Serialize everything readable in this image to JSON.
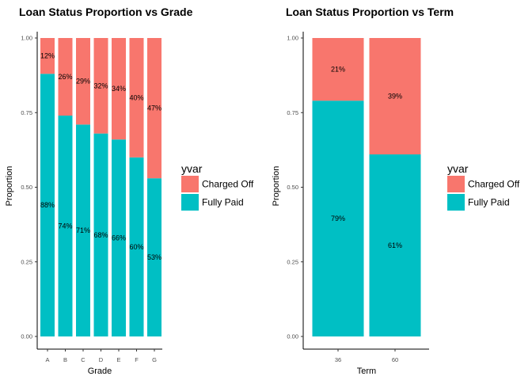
{
  "chart_data": [
    {
      "type": "bar",
      "stacked": true,
      "title": "Loan Status Proportion vs Grade",
      "xlabel": "Grade",
      "ylabel": "Proportion",
      "ylim": [
        0,
        1
      ],
      "yticks": [
        "0.00",
        "0.25",
        "0.50",
        "0.75",
        "1.00"
      ],
      "categories": [
        "A",
        "B",
        "C",
        "D",
        "E",
        "F",
        "G"
      ],
      "series": [
        {
          "name": "Fully Paid",
          "color": "#00BFC4",
          "values": [
            0.88,
            0.74,
            0.71,
            0.68,
            0.66,
            0.6,
            0.53
          ],
          "labels": [
            "88%",
            "74%",
            "71%",
            "68%",
            "66%",
            "60%",
            "53%"
          ]
        },
        {
          "name": "Charged Off",
          "color": "#F8766D",
          "values": [
            0.12,
            0.26,
            0.29,
            0.32,
            0.34,
            0.4,
            0.47
          ],
          "labels": [
            "12%",
            "26%",
            "29%",
            "32%",
            "34%",
            "40%",
            "47%"
          ]
        }
      ],
      "legend": {
        "title": "yvar",
        "position": "right",
        "entries": [
          "Charged Off",
          "Fully Paid"
        ]
      },
      "grid": false
    },
    {
      "type": "bar",
      "stacked": true,
      "title": "Loan Status Proportion vs Term",
      "xlabel": "Term",
      "ylabel": "Proportion",
      "ylim": [
        0,
        1
      ],
      "yticks": [
        "0.00",
        "0.25",
        "0.50",
        "0.75",
        "1.00"
      ],
      "categories": [
        "36",
        "60"
      ],
      "series": [
        {
          "name": "Fully Paid",
          "color": "#00BFC4",
          "values": [
            0.79,
            0.61
          ],
          "labels": [
            "79%",
            "61%"
          ]
        },
        {
          "name": "Charged Off",
          "color": "#F8766D",
          "values": [
            0.21,
            0.39
          ],
          "labels": [
            "21%",
            "39%"
          ]
        }
      ],
      "legend": {
        "title": "yvar",
        "position": "right",
        "entries": [
          "Charged Off",
          "Fully Paid"
        ]
      },
      "grid": false
    }
  ]
}
